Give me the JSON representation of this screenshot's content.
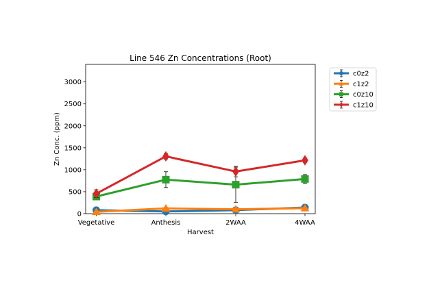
{
  "chart_data": {
    "type": "line",
    "title": "Line 546 Zn Concentrations (Root)",
    "xlabel": "Harvest",
    "ylabel": "Zn Conc. (ppm)",
    "categories": [
      "Vegetative",
      "Anthesis",
      "2WAA",
      "4WAA"
    ],
    "ylim": [
      0,
      3400
    ],
    "yticks": [
      0,
      500,
      1000,
      1500,
      2000,
      2500,
      3000
    ],
    "ytick_labels": [
      "0",
      "500",
      "1000",
      "1500",
      "2000",
      "2500",
      "3000"
    ],
    "grid": false,
    "legend_position": "outside-right-top",
    "series": [
      {
        "name": "c0z2",
        "color": "#1f77b4",
        "marker": "circle",
        "values": [
          80,
          50,
          80,
          140
        ],
        "errors": [
          10,
          10,
          10,
          10
        ]
      },
      {
        "name": "c1z2",
        "color": "#ff7f0e",
        "marker": "triangle-up",
        "values": [
          40,
          120,
          100,
          125
        ],
        "errors": [
          10,
          20,
          15,
          15
        ]
      },
      {
        "name": "c0z10",
        "color": "#2ca02c",
        "marker": "square",
        "values": [
          390,
          775,
          660,
          790
        ],
        "errors": [
          40,
          180,
          400,
          100
        ]
      },
      {
        "name": "c1z10",
        "color": "#d62728",
        "marker": "diamond",
        "values": [
          455,
          1305,
          960,
          1215
        ],
        "errors": [
          90,
          60,
          120,
          50
        ]
      }
    ]
  }
}
